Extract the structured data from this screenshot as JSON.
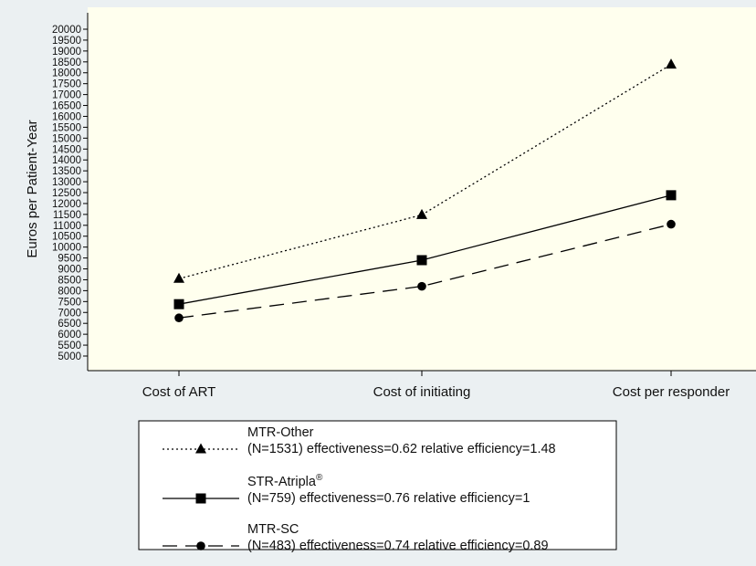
{
  "chart_data": {
    "type": "line",
    "ylabel": "Euros per Patient-Year",
    "xlabel": "",
    "categories": [
      "Cost of ART",
      "Cost of initiating",
      "Cost per responder"
    ],
    "ylim": [
      5000,
      20000
    ],
    "yticks": [
      5000,
      5500,
      6000,
      6500,
      7000,
      7500,
      8000,
      8500,
      9000,
      9500,
      10000,
      10500,
      11000,
      11500,
      12000,
      12500,
      13000,
      13500,
      14000,
      14500,
      15000,
      15500,
      16000,
      16500,
      17000,
      17500,
      18000,
      18500,
      19000,
      19500,
      20000
    ],
    "grid": false,
    "legend_position": "bottom",
    "series": [
      {
        "name": "MTR-Other",
        "detail": "(N=1531) effectiveness=0.62 relative efficiency=1.48",
        "marker": "triangle",
        "linestyle": "dotted",
        "values": [
          8550,
          11480,
          18380
        ]
      },
      {
        "name": "STR-Atripla",
        "superscript": "®",
        "detail": "(N=759) effectiveness=0.76 relative efficiency=1",
        "marker": "square",
        "linestyle": "solid",
        "values": [
          7380,
          9400,
          12380
        ]
      },
      {
        "name": "MTR-SC",
        "detail": "(N=483) effectiveness=0.74 relative efficiency=0.89",
        "marker": "circle",
        "linestyle": "dashed",
        "values": [
          6750,
          8200,
          11050
        ]
      }
    ]
  },
  "colors": {
    "background": "#ebf0f2",
    "plot_area": "#ffffee",
    "ink": "#000000"
  }
}
